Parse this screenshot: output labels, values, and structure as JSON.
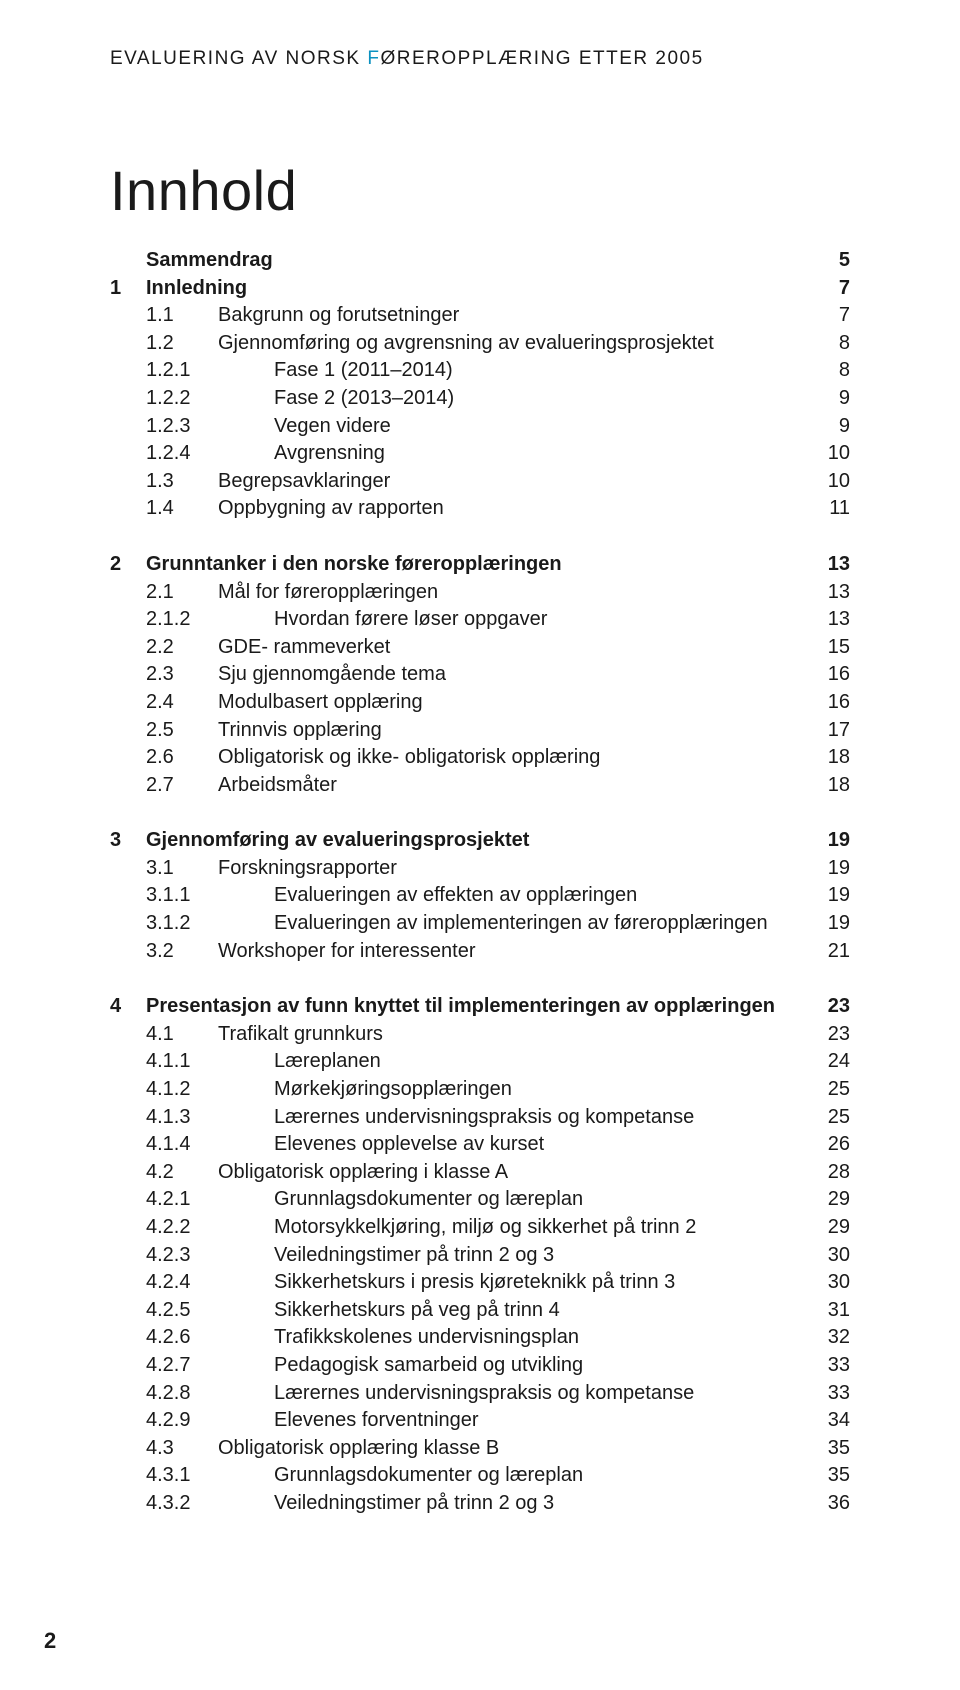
{
  "header": {
    "prefix": "EVALUERING AV NORSK ",
    "accent": "F",
    "suffix": "ØREROPPLÆRING ETTER 2005"
  },
  "title": "Innhold",
  "pageNumber": "2",
  "style": {
    "accentColor": "#0b91c0",
    "textColor": "#1a1a1a",
    "titleFontSize": 56,
    "headerFontSize": 19,
    "tocFontSize": 20
  },
  "toc": [
    {
      "gap": false,
      "level": 0,
      "bold": true,
      "num": "",
      "label": "Sammendrag",
      "page": "5"
    },
    {
      "gap": false,
      "level": 0,
      "bold": true,
      "num": "1",
      "label": "Innledning",
      "page": "7"
    },
    {
      "gap": false,
      "level": 1,
      "bold": false,
      "num": "1.1",
      "label": "Bakgrunn og forutsetninger",
      "page": "7"
    },
    {
      "gap": false,
      "level": 1,
      "bold": false,
      "num": "1.2",
      "label": "Gjennomføring og avgrensning av evalueringsprosjektet",
      "page": "8"
    },
    {
      "gap": false,
      "level": 2,
      "bold": false,
      "num": "1.2.1",
      "label": "Fase 1 (2011–2014)",
      "page": "8"
    },
    {
      "gap": false,
      "level": 2,
      "bold": false,
      "num": "1.2.2",
      "label": "Fase 2 (2013–2014)",
      "page": "9"
    },
    {
      "gap": false,
      "level": 2,
      "bold": false,
      "num": "1.2.3",
      "label": "Vegen videre",
      "page": "9"
    },
    {
      "gap": false,
      "level": 2,
      "bold": false,
      "num": "1.2.4",
      "label": "Avgrensning",
      "page": "10"
    },
    {
      "gap": false,
      "level": 1,
      "bold": false,
      "num": "1.3",
      "label": "Begrepsavklaringer",
      "page": "10"
    },
    {
      "gap": false,
      "level": 1,
      "bold": false,
      "num": "1.4",
      "label": "Oppbygning av rapporten",
      "page": "11"
    },
    {
      "gap": true
    },
    {
      "gap": false,
      "level": 0,
      "bold": true,
      "num": "2",
      "label": "Grunntanker i den norske føreropplæringen",
      "page": "13"
    },
    {
      "gap": false,
      "level": 1,
      "bold": false,
      "num": "2.1",
      "label": "Mål for føreropplæringen",
      "page": "13"
    },
    {
      "gap": false,
      "level": 2,
      "bold": false,
      "num": "2.1.2",
      "label": "Hvordan førere løser oppgaver",
      "page": "13"
    },
    {
      "gap": false,
      "level": 1,
      "bold": false,
      "num": "2.2",
      "label": "GDE- rammeverket",
      "page": "15"
    },
    {
      "gap": false,
      "level": 1,
      "bold": false,
      "num": "2.3",
      "label": "Sju gjennomgående tema",
      "page": "16"
    },
    {
      "gap": false,
      "level": 1,
      "bold": false,
      "num": "2.4",
      "label": "Modulbasert opplæring",
      "page": "16"
    },
    {
      "gap": false,
      "level": 1,
      "bold": false,
      "num": "2.5",
      "label": "Trinnvis opplæring",
      "page": "17"
    },
    {
      "gap": false,
      "level": 1,
      "bold": false,
      "num": "2.6",
      "label": "Obligatorisk og ikke- obligatorisk opplæring",
      "page": "18"
    },
    {
      "gap": false,
      "level": 1,
      "bold": false,
      "num": "2.7",
      "label": "Arbeidsmåter",
      "page": "18"
    },
    {
      "gap": true
    },
    {
      "gap": false,
      "level": 0,
      "bold": true,
      "num": "3",
      "label": "Gjennomføring av evalueringsprosjektet",
      "page": "19"
    },
    {
      "gap": false,
      "level": 1,
      "bold": false,
      "num": "3.1",
      "label": "Forskningsrapporter",
      "page": "19"
    },
    {
      "gap": false,
      "level": 2,
      "bold": false,
      "num": "3.1.1",
      "label": "Evalueringen av effekten av opplæringen",
      "page": "19"
    },
    {
      "gap": false,
      "level": 2,
      "bold": false,
      "num": "3.1.2",
      "label": "Evalueringen av implementeringen av føreropplæringen",
      "page": "19"
    },
    {
      "gap": false,
      "level": 1,
      "bold": false,
      "num": "3.2",
      "label": "Workshoper for interessenter",
      "page": "21"
    },
    {
      "gap": true
    },
    {
      "gap": false,
      "level": 0,
      "bold": true,
      "num": "4",
      "label": "Presentasjon av funn knyttet til implementeringen av opplæringen",
      "page": "23"
    },
    {
      "gap": false,
      "level": 1,
      "bold": false,
      "num": "4.1",
      "label": "Trafikalt grunnkurs",
      "page": "23"
    },
    {
      "gap": false,
      "level": 2,
      "bold": false,
      "num": "4.1.1",
      "label": "Læreplanen",
      "page": "24"
    },
    {
      "gap": false,
      "level": 2,
      "bold": false,
      "num": "4.1.2",
      "label": "Mørkekjøringsopplæringen",
      "page": "25"
    },
    {
      "gap": false,
      "level": 2,
      "bold": false,
      "num": "4.1.3",
      "label": "Lærernes undervisningspraksis og kompetanse",
      "page": "25"
    },
    {
      "gap": false,
      "level": 2,
      "bold": false,
      "num": "4.1.4",
      "label": "Elevenes opplevelse av kurset",
      "page": "26"
    },
    {
      "gap": false,
      "level": 1,
      "bold": false,
      "num": "4.2",
      "label": "Obligatorisk opplæring i klasse A",
      "page": "28"
    },
    {
      "gap": false,
      "level": 2,
      "bold": false,
      "num": "4.2.1",
      "label": "Grunnlagsdokumenter og læreplan",
      "page": "29"
    },
    {
      "gap": false,
      "level": 2,
      "bold": false,
      "num": "4.2.2",
      "label": "Motorsykkelkjøring, miljø og sikkerhet på trinn 2",
      "page": "29"
    },
    {
      "gap": false,
      "level": 2,
      "bold": false,
      "num": "4.2.3",
      "label": "Veiledningstimer på trinn 2 og 3",
      "page": "30"
    },
    {
      "gap": false,
      "level": 2,
      "bold": false,
      "num": "4.2.4",
      "label": "Sikkerhetskurs i presis kjøreteknikk på trinn 3",
      "page": "30"
    },
    {
      "gap": false,
      "level": 2,
      "bold": false,
      "num": "4.2.5",
      "label": "Sikkerhetskurs på veg på trinn 4",
      "page": "31"
    },
    {
      "gap": false,
      "level": 2,
      "bold": false,
      "num": "4.2.6",
      "label": "Trafikkskolenes undervisningsplan",
      "page": "32"
    },
    {
      "gap": false,
      "level": 2,
      "bold": false,
      "num": "4.2.7",
      "label": "Pedagogisk samarbeid og utvikling",
      "page": "33"
    },
    {
      "gap": false,
      "level": 2,
      "bold": false,
      "num": "4.2.8",
      "label": "Lærernes undervisningspraksis og kompetanse",
      "page": "33"
    },
    {
      "gap": false,
      "level": 2,
      "bold": false,
      "num": "4.2.9",
      "label": "Elevenes forventninger",
      "page": "34"
    },
    {
      "gap": false,
      "level": 1,
      "bold": false,
      "num": "4.3",
      "label": "Obligatorisk opplæring klasse B",
      "page": "35"
    },
    {
      "gap": false,
      "level": 2,
      "bold": false,
      "num": "4.3.1",
      "label": "Grunnlagsdokumenter og læreplan",
      "page": "35"
    },
    {
      "gap": false,
      "level": 2,
      "bold": false,
      "num": "4.3.2",
      "label": "Veiledningstimer på trinn 2 og 3",
      "page": "36"
    }
  ]
}
